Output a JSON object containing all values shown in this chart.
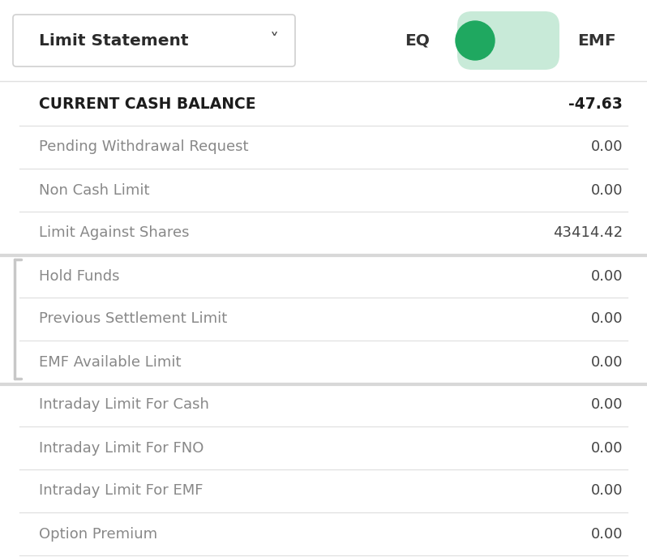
{
  "title_dropdown": "Limit Statement",
  "chevron": "✓",
  "toggle_left": "EQ",
  "toggle_right": "EMF",
  "rows": [
    {
      "label": "CURRENT CASH BALANCE",
      "value": "-47.63",
      "bold": true,
      "group_sep": false
    },
    {
      "label": "Pending Withdrawal Request",
      "value": "0.00",
      "bold": false,
      "group_sep": false
    },
    {
      "label": "Non Cash Limit",
      "value": "0.00",
      "bold": false,
      "group_sep": false
    },
    {
      "label": "Limit Against Shares",
      "value": "43414.42",
      "bold": false,
      "group_sep": true
    },
    {
      "label": "Hold Funds",
      "value": "0.00",
      "bold": false,
      "group_sep": false
    },
    {
      "label": "Previous Settlement Limit",
      "value": "0.00",
      "bold": false,
      "group_sep": false
    },
    {
      "label": "EMF Available Limit",
      "value": "0.00",
      "bold": false,
      "group_sep": true
    },
    {
      "label": "Intraday Limit For Cash",
      "value": "0.00",
      "bold": false,
      "group_sep": false
    },
    {
      "label": "Intraday Limit For FNO",
      "value": "0.00",
      "bold": false,
      "group_sep": false
    },
    {
      "label": "Intraday Limit For EMF",
      "value": "0.00",
      "bold": false,
      "group_sep": false
    },
    {
      "label": "Option Premium",
      "value": "0.00",
      "bold": false,
      "group_sep": false
    }
  ],
  "bg_color": "#ffffff",
  "separator_color": "#e0e0e0",
  "group_sep_color": "#d8d8d8",
  "label_color_bold": "#1c1c1c",
  "label_color_normal": "#888888",
  "value_color_bold": "#1c1c1c",
  "value_color_normal": "#444444",
  "toggle_green": "#1fa860",
  "toggle_light": "#c8ead8",
  "dropdown_border": "#d0d0d0",
  "accent_color": "#c8c8c8",
  "font_size_header": 14.5,
  "font_size_bold": 13.5,
  "font_size_row": 13
}
